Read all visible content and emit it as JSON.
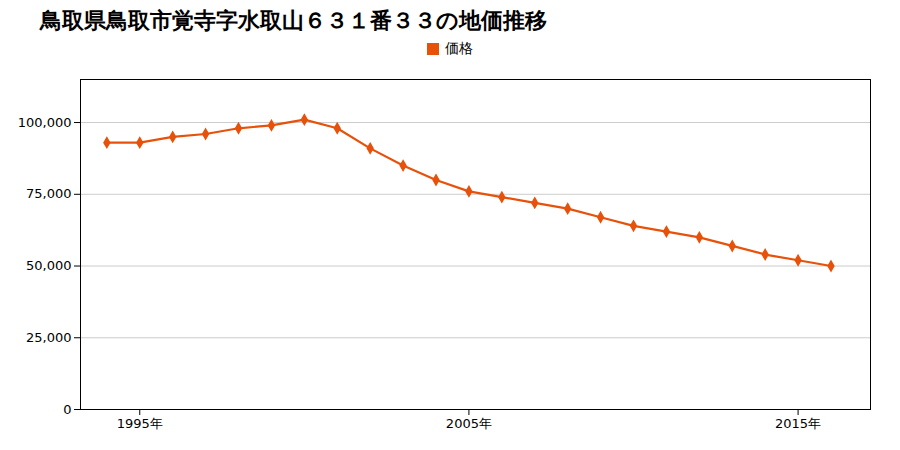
{
  "chart_data": {
    "type": "line",
    "title": "鳥取県鳥取市覚寺字水取山６３１番３３の地価推移",
    "x": [
      1994,
      1995,
      1996,
      1997,
      1998,
      1999,
      2000,
      2001,
      2002,
      2003,
      2004,
      2005,
      2006,
      2007,
      2008,
      2009,
      2010,
      2011,
      2012,
      2013,
      2014,
      2015,
      2016
    ],
    "series": [
      {
        "name": "価格",
        "color": "#E8510A",
        "marker": "diamond",
        "values": [
          93000,
          93000,
          95000,
          96000,
          98000,
          99000,
          101000,
          98000,
          91000,
          85000,
          80000,
          76000,
          74000,
          72000,
          70000,
          67000,
          64000,
          62000,
          60000,
          57000,
          54000,
          52000,
          50000
        ]
      }
    ],
    "xlim": [
      1993.2,
      2017.2
    ],
    "xticks": [
      {
        "value": 1995,
        "label": "1995年"
      },
      {
        "value": 2005,
        "label": "2005年"
      },
      {
        "value": 2015,
        "label": "2015年"
      }
    ],
    "ylim": [
      0,
      115000
    ],
    "yticks": [
      0,
      {
        "value": 25000,
        "label": "25,000"
      },
      {
        "value": 50000,
        "label": "50,000"
      },
      {
        "value": 75000,
        "label": "75,000"
      },
      {
        "value": 100000,
        "label": "100,000"
      }
    ],
    "grid": true,
    "legend": "top"
  }
}
